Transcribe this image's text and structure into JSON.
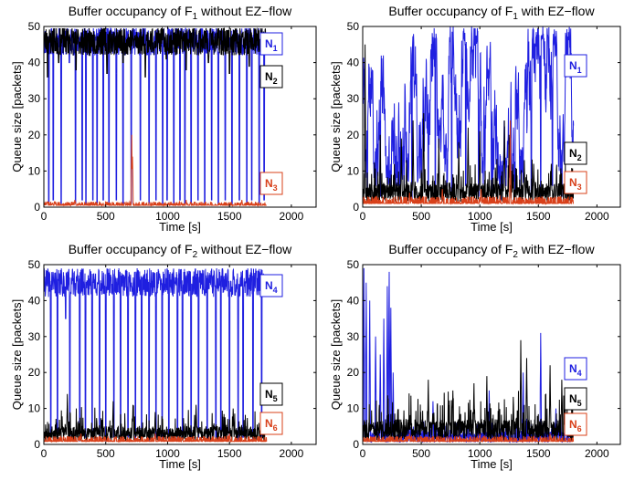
{
  "colors": {
    "blue": "#1f1fe0",
    "black": "#000000",
    "red": "#d8401a",
    "axis": "#000000",
    "background": "#ffffff"
  },
  "chart_data": [
    {
      "type": "line",
      "title": "Buffer occupancy of F1 without EZ-flow",
      "title_main": "Buffer occupancy of F",
      "title_sub": "1",
      "title_rest": " without EZ−flow",
      "xlabel": "Time [s]",
      "ylabel": "Queue size [packets]",
      "xlim": [
        0,
        2200
      ],
      "ylim": [
        0,
        50
      ],
      "xticks": [
        0,
        500,
        1000,
        1500,
        2000
      ],
      "yticks": [
        0,
        10,
        20,
        30,
        40,
        50
      ],
      "grid": false,
      "legend_position": "right",
      "series": [
        {
          "name": "N1",
          "label_main": "N",
          "label_sub": "1",
          "color": "#1f1fe0",
          "pattern": "high_dropouts",
          "level": 46,
          "noise": 4,
          "end_time": 1800,
          "seed": 11,
          "drops": [
            [
              40,
              1
            ],
            [
              75,
              2
            ],
            [
              140,
              1
            ],
            [
              205,
              40
            ],
            [
              255,
              1
            ],
            [
              310,
              2
            ],
            [
              340,
              1
            ],
            [
              395,
              2
            ],
            [
              430,
              1
            ],
            [
              480,
              2
            ],
            [
              525,
              1
            ],
            [
              585,
              2
            ],
            [
              640,
              1
            ],
            [
              705,
              1
            ],
            [
              780,
              2
            ],
            [
              850,
              1
            ],
            [
              905,
              2
            ],
            [
              960,
              1
            ],
            [
              995,
              2
            ],
            [
              1050,
              1
            ],
            [
              1100,
              2
            ],
            [
              1140,
              1
            ],
            [
              1190,
              1
            ],
            [
              1245,
              2
            ],
            [
              1300,
              1
            ],
            [
              1355,
              2
            ],
            [
              1410,
              1
            ],
            [
              1465,
              2
            ],
            [
              1520,
              1
            ],
            [
              1580,
              2
            ],
            [
              1640,
              1
            ],
            [
              1680,
              2
            ],
            [
              1740,
              1
            ],
            [
              1780,
              2
            ]
          ]
        },
        {
          "name": "N2",
          "label_main": "N",
          "label_sub": "2",
          "color": "#000000",
          "pattern": "high_band",
          "level": 46,
          "noise": 4,
          "end_time": 1800,
          "seed": 23,
          "drops": [
            [
              30,
              36
            ],
            [
              120,
              40
            ],
            [
              260,
              38
            ],
            [
              370,
              42
            ],
            [
              510,
              37
            ],
            [
              640,
              40
            ],
            [
              820,
              36
            ],
            [
              990,
              41
            ],
            [
              1150,
              38
            ],
            [
              1330,
              40
            ],
            [
              1500,
              37
            ],
            [
              1660,
              39
            ]
          ]
        },
        {
          "name": "N3",
          "label_main": "N",
          "label_sub": "3",
          "color": "#d8401a",
          "pattern": "low_spikes",
          "level": 0.5,
          "noise": 1,
          "end_time": 1800,
          "seed": 37,
          "spikes": [
            [
              710,
              20
            ],
            [
              715,
              14
            ],
            [
              1150,
              2
            ],
            [
              250,
              2
            ],
            [
              1600,
              2
            ]
          ]
        }
      ]
    },
    {
      "type": "line",
      "title": "Buffer occupancy of F1 with EZ-flow",
      "title_main": "Buffer occupancy of F",
      "title_sub": "1",
      "title_rest": " with EZ−flow",
      "xlabel": "Time [s]",
      "ylabel": "Queue size [packets]",
      "xlim": [
        0,
        2200
      ],
      "ylim": [
        0,
        50
      ],
      "xticks": [
        0,
        500,
        1000,
        1500,
        2000
      ],
      "yticks": [
        0,
        10,
        20,
        30,
        40,
        50
      ],
      "grid": false,
      "legend_position": "right",
      "series": [
        {
          "name": "N1",
          "label_main": "N",
          "label_sub": "1",
          "color": "#1f1fe0",
          "pattern": "random_walk",
          "level": 35,
          "noise": 14,
          "end_time": 1800,
          "seed": 5,
          "drops": [
            [
              40,
              4
            ],
            [
              150,
              3
            ],
            [
              300,
              6
            ],
            [
              420,
              2
            ],
            [
              560,
              5
            ],
            [
              620,
              2
            ],
            [
              760,
              4
            ],
            [
              880,
              6
            ],
            [
              990,
              3
            ],
            [
              1100,
              4
            ],
            [
              1180,
              2
            ],
            [
              1300,
              5
            ],
            [
              1440,
              3
            ],
            [
              1520,
              2
            ],
            [
              1620,
              6
            ],
            [
              1700,
              3
            ]
          ]
        },
        {
          "name": "N2",
          "label_main": "N",
          "label_sub": "2",
          "color": "#000000",
          "pattern": "low_noise_spikes",
          "level": 4,
          "noise": 5,
          "end_time": 1800,
          "seed": 17,
          "spikes": [
            [
              20,
              45
            ],
            [
              150,
              20
            ],
            [
              330,
              19
            ],
            [
              430,
              24
            ],
            [
              520,
              26
            ],
            [
              650,
              19
            ],
            [
              820,
              18
            ],
            [
              900,
              22
            ],
            [
              1000,
              21
            ],
            [
              1210,
              24
            ],
            [
              1250,
              20
            ],
            [
              1380,
              13
            ],
            [
              1460,
              12
            ],
            [
              1610,
              12
            ]
          ]
        },
        {
          "name": "N3",
          "label_main": "N",
          "label_sub": "3",
          "color": "#d8401a",
          "pattern": "low_spikes",
          "level": 1,
          "noise": 2,
          "end_time": 1800,
          "seed": 29,
          "spikes": [
            [
              1260,
              24
            ],
            [
              680,
              5
            ],
            [
              1010,
              5
            ],
            [
              400,
              4
            ]
          ]
        }
      ]
    },
    {
      "type": "line",
      "title": "Buffer occupancy of F2 without EZ-flow",
      "title_main": "Buffer occupancy of F",
      "title_sub": "2",
      "title_rest": " without EZ−flow",
      "xlabel": "Time [s]",
      "ylabel": "Queue size [packets]",
      "xlim": [
        0,
        2200
      ],
      "ylim": [
        0,
        50
      ],
      "xticks": [
        0,
        500,
        1000,
        1500,
        2000
      ],
      "yticks": [
        0,
        10,
        20,
        30,
        40,
        50
      ],
      "grid": false,
      "legend_position": "right",
      "series": [
        {
          "name": "N4",
          "label_main": "N",
          "label_sub": "4",
          "color": "#1f1fe0",
          "pattern": "high_dropouts",
          "level": 45,
          "noise": 4,
          "end_time": 1800,
          "seed": 41,
          "drops": [
            [
              55,
              2
            ],
            [
              110,
              1
            ],
            [
              175,
              35
            ],
            [
              210,
              2
            ],
            [
              290,
              1
            ],
            [
              335,
              2
            ],
            [
              390,
              1
            ],
            [
              450,
              2
            ],
            [
              500,
              1
            ],
            [
              565,
              2
            ],
            [
              620,
              1
            ],
            [
              680,
              2
            ],
            [
              740,
              1
            ],
            [
              790,
              2
            ],
            [
              850,
              1
            ],
            [
              905,
              2
            ],
            [
              955,
              1
            ],
            [
              1010,
              2
            ],
            [
              1080,
              1
            ],
            [
              1120,
              2
            ],
            [
              1190,
              1
            ],
            [
              1250,
              2
            ],
            [
              1320,
              1
            ],
            [
              1390,
              2
            ],
            [
              1430,
              1
            ],
            [
              1500,
              2
            ],
            [
              1570,
              1
            ],
            [
              1610,
              2
            ],
            [
              1690,
              1
            ],
            [
              1760,
              2
            ]
          ]
        },
        {
          "name": "N5",
          "label_main": "N",
          "label_sub": "5",
          "color": "#000000",
          "pattern": "low_noise_spikes",
          "level": 3,
          "noise": 4,
          "end_time": 1800,
          "seed": 53,
          "spikes": [
            [
              190,
              14
            ],
            [
              560,
              12
            ],
            [
              720,
              11
            ],
            [
              900,
              9
            ],
            [
              1230,
              11
            ],
            [
              1530,
              10
            ]
          ]
        },
        {
          "name": "N6",
          "label_main": "N",
          "label_sub": "6",
          "color": "#d8401a",
          "pattern": "low_spikes",
          "level": 0.8,
          "noise": 1.5,
          "end_time": 1800,
          "seed": 61,
          "spikes": [
            [
              300,
              3
            ],
            [
              900,
              3
            ],
            [
              1500,
              3
            ]
          ]
        }
      ]
    },
    {
      "type": "line",
      "title": "Buffer occupancy of F2 with EZ-flow",
      "title_main": "Buffer occupancy of F",
      "title_sub": "2",
      "title_rest": " with EZ−flow",
      "xlabel": "Time [s]",
      "ylabel": "Queue size [packets]",
      "xlim": [
        0,
        2200
      ],
      "ylim": [
        0,
        50
      ],
      "xticks": [
        0,
        500,
        1000,
        1500,
        2000
      ],
      "yticks": [
        0,
        10,
        20,
        30,
        40,
        50
      ],
      "grid": false,
      "legend_position": "right",
      "series": [
        {
          "name": "N4",
          "label_main": "N",
          "label_sub": "4",
          "color": "#1f1fe0",
          "pattern": "early_burst",
          "level": 2,
          "noise": 3,
          "end_time": 1800,
          "seed": 71,
          "spikes": [
            [
              10,
              49
            ],
            [
              30,
              45
            ],
            [
              60,
              40
            ],
            [
              110,
              30
            ],
            [
              150,
              25
            ],
            [
              180,
              35
            ],
            [
              210,
              44
            ],
            [
              225,
              48
            ],
            [
              240,
              38
            ],
            [
              260,
              20
            ],
            [
              600,
              12
            ],
            [
              1080,
              15
            ],
            [
              1370,
              20
            ],
            [
              1520,
              31
            ],
            [
              1650,
              10
            ]
          ]
        },
        {
          "name": "N5",
          "label_main": "N",
          "label_sub": "5",
          "color": "#000000",
          "pattern": "low_noise_spikes",
          "level": 4,
          "noise": 6,
          "end_time": 1800,
          "seed": 83,
          "spikes": [
            [
              560,
              18
            ],
            [
              770,
              15
            ],
            [
              950,
              17
            ],
            [
              1060,
              19
            ],
            [
              1350,
              29
            ],
            [
              1400,
              24
            ],
            [
              1600,
              22
            ],
            [
              1700,
              18
            ]
          ]
        },
        {
          "name": "N6",
          "label_main": "N",
          "label_sub": "6",
          "color": "#d8401a",
          "pattern": "low_spikes",
          "level": 0.8,
          "noise": 1.5,
          "end_time": 1800,
          "seed": 97,
          "spikes": [
            [
              400,
              3
            ],
            [
              1000,
              3
            ],
            [
              1600,
              3
            ]
          ]
        }
      ]
    }
  ]
}
